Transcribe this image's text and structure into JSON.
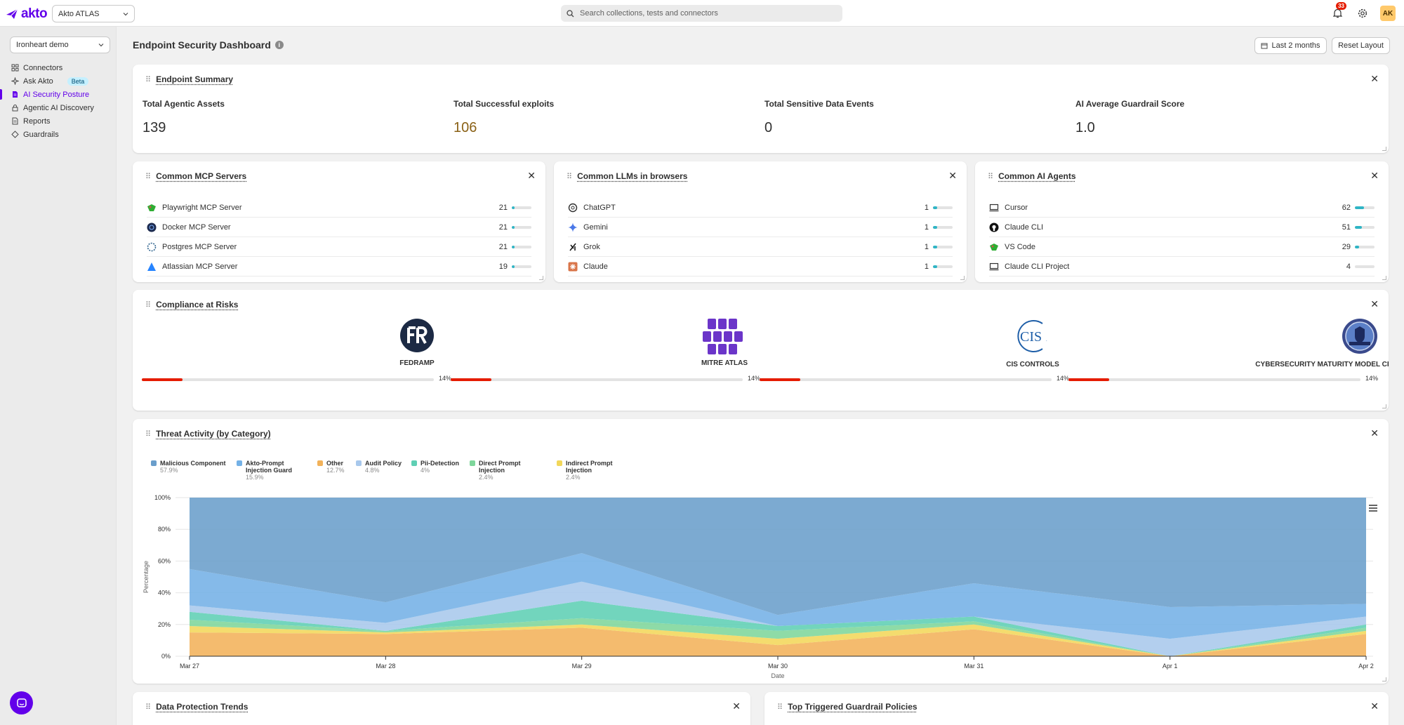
{
  "app": {
    "logo_text": "akto",
    "workspace": "Akto ATLAS",
    "search_placeholder": "Search collections, tests and connectors",
    "notification_count": "33",
    "avatar": "AK"
  },
  "sidebar": {
    "collection": "Ironheart demo",
    "items": [
      {
        "label": "Connectors",
        "icon": "connectors-icon"
      },
      {
        "label": "Ask Akto",
        "icon": "sparkle-icon",
        "badge": "Beta"
      },
      {
        "label": "AI Security Posture",
        "icon": "document-icon",
        "active": true
      },
      {
        "label": "Agentic AI Discovery",
        "icon": "lock-icon"
      },
      {
        "label": "Reports",
        "icon": "report-icon"
      },
      {
        "label": "Guardrails",
        "icon": "diamond-icon"
      }
    ]
  },
  "header": {
    "title": "Endpoint Security Dashboard",
    "date_range": "Last 2 months",
    "reset": "Reset Layout"
  },
  "summary": {
    "title": "Endpoint Summary",
    "metrics": [
      {
        "label": "Total Agentic Assets",
        "value": "139",
        "color": "#303030"
      },
      {
        "label": "Total Successful exploits",
        "value": "106",
        "color": "#8a6116"
      },
      {
        "label": "Total Sensitive Data Events",
        "value": "0",
        "color": "#303030"
      },
      {
        "label": "AI Average Guardrail Score",
        "value": "1.0",
        "color": "#303030"
      }
    ]
  },
  "mcp": {
    "title": "Common MCP Servers",
    "rows": [
      {
        "name": "Playwright MCP Server",
        "count": "21",
        "fill": 0.15,
        "icon": "playwright-icon"
      },
      {
        "name": "Docker MCP Server",
        "count": "21",
        "fill": 0.15,
        "icon": "docker-icon"
      },
      {
        "name": "Postgres MCP Server",
        "count": "21",
        "fill": 0.15,
        "icon": "postgres-icon"
      },
      {
        "name": "Atlassian MCP Server",
        "count": "19",
        "fill": 0.14,
        "icon": "atlassian-icon"
      }
    ]
  },
  "llms": {
    "title": "Common LLMs in browsers",
    "rows": [
      {
        "name": "ChatGPT",
        "count": "1",
        "fill": 0.2,
        "icon": "chatgpt-icon"
      },
      {
        "name": "Gemini",
        "count": "1",
        "fill": 0.2,
        "icon": "gemini-icon"
      },
      {
        "name": "Grok",
        "count": "1",
        "fill": 0.2,
        "icon": "grok-icon"
      },
      {
        "name": "Claude",
        "count": "1",
        "fill": 0.2,
        "icon": "claude-icon"
      }
    ]
  },
  "agents": {
    "title": "Common AI Agents",
    "rows": [
      {
        "name": "Cursor",
        "count": "62",
        "fill": 0.45,
        "icon": "cursor-icon"
      },
      {
        "name": "Claude CLI",
        "count": "51",
        "fill": 0.37,
        "icon": "github-icon"
      },
      {
        "name": "VS Code",
        "count": "29",
        "fill": 0.21,
        "icon": "vscode-icon"
      },
      {
        "name": "Claude CLI Project",
        "count": "4",
        "fill": 0.0,
        "icon": "laptop-icon"
      }
    ]
  },
  "compliance": {
    "title": "Compliance at Risks",
    "items": [
      {
        "name": "FEDRAMP",
        "percent": "14%",
        "fill": 0.14
      },
      {
        "name": "MITRE ATLAS",
        "percent": "14%",
        "fill": 0.14
      },
      {
        "name": "CIS CONTROLS",
        "percent": "14%",
        "fill": 0.14
      },
      {
        "name": "CYBERSECURITY MATURITY MODEL CERTIFICATION (CMMC)",
        "percent": "14%",
        "fill": 0.14
      }
    ]
  },
  "threat": {
    "title": "Threat Activity (by Category)",
    "legend": [
      {
        "name": "Malicious Component",
        "pct": "57.9%",
        "color": "#6a9ecb"
      },
      {
        "name": "Akto-Prompt Injection Guard",
        "pct": "15.9%",
        "color": "#74b1e6"
      },
      {
        "name": "Other",
        "pct": "12.7%",
        "color": "#f2b25a"
      },
      {
        "name": "Audit Policy",
        "pct": "4.8%",
        "color": "#a8c8ec"
      },
      {
        "name": "Pii-Detection",
        "pct": "4%",
        "color": "#5fcfb4"
      },
      {
        "name": "Direct Prompt Injection",
        "pct": "2.4%",
        "color": "#7ed69b"
      },
      {
        "name": "Indirect Prompt Injection",
        "pct": "2.4%",
        "color": "#f2d75a"
      }
    ]
  },
  "chart_data": {
    "type": "area",
    "stacking": "percent",
    "x": [
      "Mar 27",
      "Mar 28",
      "Mar 29",
      "Mar 30",
      "Mar 31",
      "Apr 1",
      "Apr 2"
    ],
    "xlabel": "Date",
    "ylabel": "Percentage",
    "yticks": [
      "0%",
      "20%",
      "40%",
      "60%",
      "80%",
      "100%"
    ],
    "ylim": [
      0,
      100
    ],
    "series": [
      {
        "name": "Other",
        "color": "#f2b25a",
        "values": [
          15,
          14,
          18,
          7,
          17,
          0,
          14
        ]
      },
      {
        "name": "Indirect Prompt Injection",
        "color": "#f2d75a",
        "values": [
          4,
          1,
          2,
          4,
          3,
          0,
          2
        ]
      },
      {
        "name": "Direct Prompt Injection",
        "color": "#7ed69b",
        "values": [
          4,
          1,
          4,
          5,
          2,
          0,
          2
        ]
      },
      {
        "name": "Pii-Detection",
        "color": "#5fcfb4",
        "values": [
          5,
          0,
          11,
          3,
          3,
          0,
          2
        ]
      },
      {
        "name": "Audit Policy",
        "color": "#a8c8ec",
        "values": [
          4,
          5,
          12,
          0,
          0,
          11,
          5
        ]
      },
      {
        "name": "Akto-Prompt Injection Guard",
        "color": "#74b1e6",
        "values": [
          23,
          13,
          18,
          7,
          21,
          20,
          8
        ]
      },
      {
        "name": "Malicious Component",
        "color": "#6a9ecb",
        "values": [
          45,
          66,
          35,
          74,
          54,
          69,
          67
        ]
      }
    ],
    "grid": true
  },
  "bottom": {
    "left_title": "Data Protection Trends",
    "right_title": "Top Triggered Guardrail Policies"
  }
}
